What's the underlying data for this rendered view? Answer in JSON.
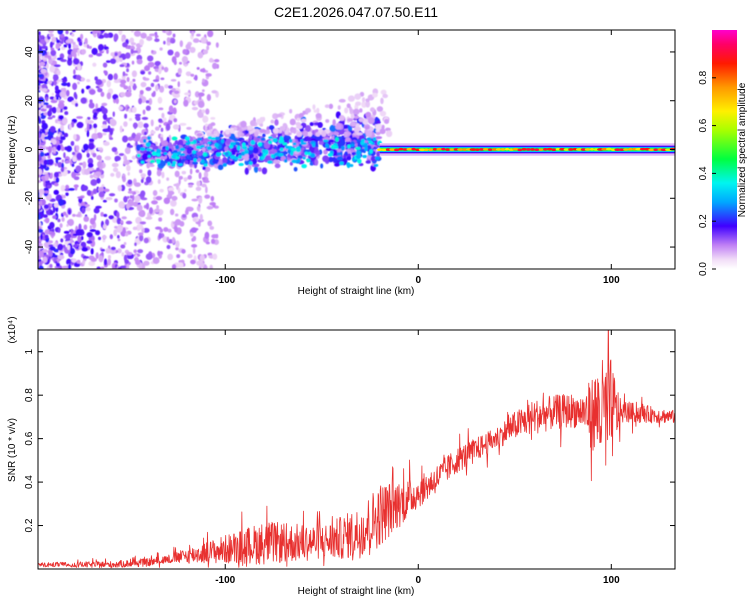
{
  "title": "C2E1.2026.047.07.50.E11",
  "charts": [
    {
      "type": "heatmap",
      "xlabel": "Height of straight line (km)",
      "ylabel": "Frequency (Hz)",
      "xlim": [
        -197,
        133
      ],
      "ylim": [
        -49,
        49
      ],
      "xticks": [
        {
          "v": -100,
          "label": "-100"
        },
        {
          "v": 0,
          "label": "0"
        },
        {
          "v": 100,
          "label": "100"
        }
      ],
      "yticks": [
        {
          "v": -40,
          "label": "-40"
        },
        {
          "v": -20,
          "label": "-20"
        },
        {
          "v": 0,
          "label": "0"
        },
        {
          "v": 20,
          "label": "20"
        },
        {
          "v": 40,
          "label": "40"
        }
      ],
      "colorbar": {
        "label": "Normalized spectral amplitude",
        "range": [
          0,
          1
        ],
        "ticks": [
          {
            "v": 0.0,
            "label": "0.0"
          },
          {
            "v": 0.2,
            "label": "0.2"
          },
          {
            "v": 0.4,
            "label": "0.4"
          },
          {
            "v": 0.6,
            "label": "0.6"
          },
          {
            "v": 0.8,
            "label": "0.8"
          }
        ]
      },
      "signal_regions": [
        {
          "name": "noise",
          "x": [
            -197,
            -122
          ],
          "y": [
            -49,
            49
          ]
        },
        {
          "name": "scattered-signal",
          "x": [
            -145,
            -20
          ],
          "y": [
            -12,
            18
          ]
        },
        {
          "name": "steady-carrier",
          "x": [
            -20,
            133
          ],
          "y": [
            -4,
            4
          ],
          "peak_freq": 0
        }
      ]
    },
    {
      "type": "line",
      "xlabel": "Height of straight line (km)",
      "ylabel": "SNR (10 * v/v)",
      "multiplier": "(x10⁴)",
      "xlim": [
        -197,
        133
      ],
      "ylim": [
        0,
        1.1
      ],
      "xticks": [
        {
          "v": -100,
          "label": "-100"
        },
        {
          "v": 0,
          "label": "0"
        },
        {
          "v": 100,
          "label": "100"
        }
      ],
      "yticks": [
        {
          "v": 0.2,
          "label": "0.2"
        },
        {
          "v": 0.4,
          "label": "0.4"
        },
        {
          "v": 0.6,
          "label": "0.6"
        },
        {
          "v": 0.8,
          "label": "0.8"
        },
        {
          "v": 1.0,
          "label": "1"
        }
      ],
      "series": [
        {
          "name": "SNR",
          "color": "#e8302f",
          "envelope": [
            {
              "x": -197,
              "y": 0.02
            },
            {
              "x": -160,
              "y": 0.02
            },
            {
              "x": -140,
              "y": 0.03
            },
            {
              "x": -120,
              "y": 0.06
            },
            {
              "x": -100,
              "y": 0.09
            },
            {
              "x": -80,
              "y": 0.12
            },
            {
              "x": -60,
              "y": 0.12
            },
            {
              "x": -45,
              "y": 0.13
            },
            {
              "x": -30,
              "y": 0.17
            },
            {
              "x": -20,
              "y": 0.25
            },
            {
              "x": -10,
              "y": 0.3
            },
            {
              "x": 0,
              "y": 0.35
            },
            {
              "x": 10,
              "y": 0.42
            },
            {
              "x": 20,
              "y": 0.5
            },
            {
              "x": 30,
              "y": 0.55
            },
            {
              "x": 40,
              "y": 0.6
            },
            {
              "x": 50,
              "y": 0.66
            },
            {
              "x": 60,
              "y": 0.7
            },
            {
              "x": 70,
              "y": 0.72
            },
            {
              "x": 80,
              "y": 0.73
            },
            {
              "x": 90,
              "y": 0.72
            },
            {
              "x": 100,
              "y": 0.72
            },
            {
              "x": 110,
              "y": 0.72
            },
            {
              "x": 133,
              "y": 0.7
            }
          ],
          "noise_amplitude": [
            {
              "x": -197,
              "a": 0.01
            },
            {
              "x": -130,
              "a": 0.02
            },
            {
              "x": -110,
              "a": 0.05
            },
            {
              "x": -80,
              "a": 0.1
            },
            {
              "x": -50,
              "a": 0.08
            },
            {
              "x": -30,
              "a": 0.12
            },
            {
              "x": -20,
              "a": 0.15
            },
            {
              "x": 0,
              "a": 0.07
            },
            {
              "x": 40,
              "a": 0.05
            },
            {
              "x": 60,
              "a": 0.08
            },
            {
              "x": 85,
              "a": 0.08
            },
            {
              "x": 95,
              "a": 0.25
            },
            {
              "x": 100,
              "a": 0.25
            },
            {
              "x": 105,
              "a": 0.05
            },
            {
              "x": 133,
              "a": 0.03
            }
          ]
        }
      ]
    }
  ]
}
